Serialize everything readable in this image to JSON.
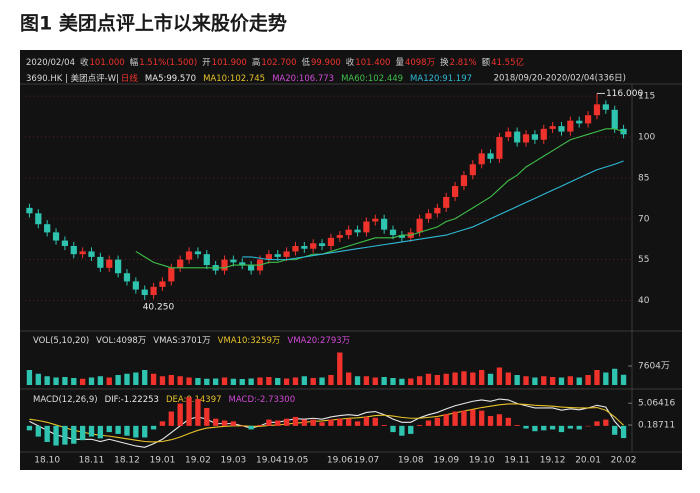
{
  "title": "图1  美团点评上市以来股价走势",
  "chart_data": [
    {
      "type": "candlestick",
      "header": [
        "2020/02/04",
        "收",
        "101.000",
        "幅",
        "1.51%(1.500)",
        "开",
        "101.900",
        "高",
        "102.700",
        "低",
        "99.900",
        "收",
        "101.400",
        "量",
        "4098万",
        "换",
        "2.81%",
        "额",
        "41.55亿"
      ],
      "symbol": "3690.HK | 美团点评-W|",
      "period": "日线",
      "range": "2018/09/20-2020/02/04(336日)",
      "open": [
        74,
        72,
        68,
        65,
        62,
        60,
        57,
        58,
        56,
        52,
        55,
        50,
        47,
        44,
        42,
        45,
        47,
        52,
        55,
        58,
        57,
        53,
        51,
        55,
        54,
        53,
        51,
        55,
        57,
        56,
        58,
        60,
        59,
        61,
        60,
        63,
        64,
        66,
        65,
        69,
        70,
        66,
        64,
        63,
        65,
        70,
        72,
        74,
        78,
        82,
        86,
        90,
        94,
        92,
        100,
        102,
        98,
        101,
        99,
        103,
        104,
        102,
        106,
        105,
        108,
        112,
        110,
        103
      ],
      "high": [
        75.5,
        73.5,
        69.5,
        66.5,
        63.5,
        61.5,
        59.5,
        59.5,
        57.5,
        56.5,
        56.5,
        51.5,
        48.5,
        45.5,
        46.5,
        48.5,
        53.5,
        56.5,
        59.5,
        59.5,
        58.5,
        54.5,
        56.5,
        56.5,
        55.5,
        54.5,
        56.5,
        58.5,
        58.5,
        59.5,
        61.5,
        61.5,
        62.5,
        62.5,
        64.5,
        65.5,
        67.5,
        67.5,
        70.5,
        71.5,
        71.5,
        67.5,
        65.5,
        66.5,
        71.5,
        73.5,
        75.5,
        79.5,
        83.5,
        87.5,
        91.5,
        95.5,
        95.5,
        101.5,
        103.5,
        103.5,
        102.5,
        102.5,
        104.5,
        105.5,
        105.5,
        107.5,
        107.5,
        109.5,
        116,
        113.5,
        111.5,
        104.5
      ],
      "low": [
        70.5,
        66.5,
        63.5,
        60.5,
        58.5,
        55.5,
        55.5,
        54.5,
        50.5,
        50.5,
        48.5,
        45.5,
        42.5,
        40.25,
        40.5,
        43.5,
        45.5,
        50.5,
        53.5,
        55.5,
        51.5,
        49.5,
        49.5,
        52.5,
        51.5,
        49.5,
        49.5,
        53.5,
        54.5,
        54.5,
        56.5,
        57.5,
        57.5,
        58.5,
        58.5,
        61.5,
        62.5,
        63.5,
        63.5,
        67.5,
        64.5,
        62.5,
        61.5,
        61.5,
        63.5,
        68.5,
        70.5,
        72.5,
        76.5,
        80.5,
        84.5,
        88.5,
        90.5,
        90.5,
        98.5,
        96.5,
        96.5,
        97.5,
        97.5,
        101.5,
        100.5,
        100.5,
        103.5,
        103.5,
        106.5,
        108.5,
        101.5,
        99.5
      ],
      "close": [
        72,
        68,
        65,
        62,
        60,
        57,
        58,
        56,
        52,
        55,
        50,
        47,
        44,
        42,
        45,
        47,
        52,
        55,
        58,
        57,
        53,
        51,
        55,
        54,
        53,
        51,
        55,
        57,
        56,
        58,
        60,
        59,
        61,
        60,
        63,
        64,
        66,
        65,
        69,
        70,
        66,
        64,
        63,
        65,
        70,
        72,
        74,
        78,
        82,
        86,
        90,
        94,
        92,
        100,
        102,
        98,
        101,
        99,
        103,
        104,
        102,
        106,
        105,
        108,
        112,
        110,
        103,
        101
      ],
      "up_color": "#f0322d",
      "down_color": "#2ec4b0",
      "series": [
        {
          "name": "MA5:99.570",
          "color": "#e8e8e8"
        },
        {
          "name": "MA10:102.745",
          "color": "#e6c229"
        },
        {
          "name": "MA20:106.773",
          "color": "#d04ad8"
        },
        {
          "name": "MA60:102.449",
          "color": "#3fbf4a",
          "values": [
            null,
            null,
            null,
            null,
            null,
            null,
            null,
            null,
            null,
            null,
            null,
            null,
            58,
            56,
            54,
            53,
            52,
            52,
            52,
            52,
            52,
            52,
            52,
            53,
            53,
            53,
            53,
            54,
            54,
            55,
            55,
            56,
            57,
            57,
            58,
            59,
            60,
            61,
            62,
            63,
            63,
            63,
            64,
            64,
            65,
            66,
            67,
            69,
            70,
            72,
            74,
            76,
            78,
            81,
            84,
            86,
            89,
            91,
            93,
            95,
            97,
            99,
            100,
            101,
            102,
            103,
            103,
            102
          ]
        },
        {
          "name": "MA120:91.197",
          "color": "#2fb9d6",
          "values": [
            null,
            null,
            null,
            null,
            null,
            null,
            null,
            null,
            null,
            null,
            null,
            null,
            null,
            null,
            null,
            null,
            null,
            null,
            null,
            null,
            null,
            null,
            null,
            null,
            56,
            56,
            55.5,
            55,
            55,
            55,
            55.5,
            56,
            56.5,
            57,
            57.5,
            58,
            58.5,
            59,
            59.5,
            60,
            60.5,
            61,
            61.5,
            62,
            62.5,
            63,
            63.5,
            64,
            65,
            66,
            67,
            68.5,
            70,
            71.5,
            73,
            74.5,
            76,
            77.5,
            79,
            80.5,
            82,
            83.5,
            85,
            86.5,
            88,
            89,
            90,
            91.2
          ]
        }
      ],
      "high_label": "116.000",
      "low_label": "40.250",
      "ylim": [
        31,
        118
      ],
      "yticks": [
        40,
        55,
        70,
        85,
        100,
        115
      ],
      "grid": true
    },
    {
      "type": "bar",
      "series": [
        {
          "name": "VOL(5,10,20)",
          "color": "#dddddd"
        },
        {
          "name": "VOL:4098万",
          "color": "#dddddd",
          "values": [
            6000,
            4500,
            3500,
            3000,
            3200,
            2800,
            2500,
            3000,
            3500,
            3000,
            4000,
            4500,
            5000,
            6000,
            4500,
            3500,
            4000,
            3500,
            3000,
            2800,
            2500,
            2600,
            3000,
            2500,
            2400,
            2600,
            3000,
            3200,
            2800,
            2600,
            3000,
            3500,
            2800,
            3000,
            4000,
            13000,
            5000,
            3500,
            3500,
            3000,
            3200,
            2800,
            2500,
            2600,
            3500,
            4500,
            4000,
            4500,
            5000,
            5500,
            5000,
            6000,
            4500,
            7000,
            5000,
            4000,
            3500,
            3000,
            3500,
            3200,
            3000,
            3500,
            3000,
            4000,
            6000,
            5000,
            6500,
            4098
          ]
        },
        {
          "name": "VMAS:3701万",
          "color": "#dddddd"
        },
        {
          "name": "VMA10:3259万",
          "color": "#e6c229"
        },
        {
          "name": "VMA20:2793万",
          "color": "#d04ad8"
        }
      ],
      "ylim": [
        0,
        16000
      ],
      "yticks": [
        {
          "value": 7604,
          "label": "7604万"
        }
      ]
    },
    {
      "type": "macd",
      "categories": [
        null,
        null,
        "18.10",
        null,
        null,
        null,
        null,
        "18.11",
        null,
        null,
        null,
        "18.12",
        null,
        null,
        null,
        "19.01",
        null,
        null,
        null,
        "19.02",
        null,
        null,
        null,
        "19.03",
        null,
        null,
        null,
        "19.04",
        null,
        null,
        "19.05",
        null,
        null,
        null,
        null,
        "19.06",
        null,
        null,
        "19.07",
        null,
        null,
        null,
        null,
        "19.08",
        null,
        null,
        null,
        "19.09",
        null,
        null,
        null,
        "19.10",
        null,
        null,
        null,
        "19.11",
        null,
        null,
        null,
        "19.12",
        null,
        null,
        null,
        "20.01",
        null,
        null,
        null,
        "20.02"
      ],
      "series": [
        {
          "name": "MACD(12,26,9)",
          "color": "#dddddd"
        },
        {
          "name": "DIF:-1.22253",
          "color": "#e8e8e8",
          "values": [
            1,
            0,
            -1,
            -2,
            -2.5,
            -3,
            -3,
            -3,
            -3.5,
            -3,
            -3.5,
            -4,
            -4.5,
            -4.8,
            -4,
            -3,
            -1.5,
            0,
            1.5,
            2,
            1.5,
            0.5,
            0.5,
            0.5,
            0,
            -0.5,
            0,
            0.8,
            0.8,
            1.2,
            1.6,
            1.5,
            1.7,
            1.5,
            2,
            2.3,
            2.5,
            2.3,
            3,
            3.2,
            2.5,
            1.5,
            0.8,
            0.8,
            1.8,
            2.5,
            3,
            3.8,
            4.5,
            5,
            5.5,
            5.8,
            5.5,
            6,
            5.8,
            5,
            4.5,
            4,
            4,
            4,
            3.5,
            3.8,
            3.6,
            4,
            4.6,
            4.2,
            1,
            -1.2
          ]
        },
        {
          "name": "DEA:0.14397",
          "color": "#e6c229",
          "values": [
            1.5,
            1.2,
            0.8,
            0.2,
            -0.4,
            -1,
            -1.4,
            -1.8,
            -2.1,
            -2.3,
            -2.6,
            -2.9,
            -3.2,
            -3.5,
            -3.6,
            -3.5,
            -3.1,
            -2.5,
            -1.7,
            -1,
            -0.5,
            -0.3,
            -0.1,
            0,
            0,
            -0.1,
            -0.1,
            0.1,
            0.2,
            0.4,
            0.6,
            0.8,
            1,
            1.1,
            1.3,
            1.5,
            1.7,
            1.8,
            2,
            2.3,
            2.4,
            2.2,
            1.9,
            1.7,
            1.7,
            1.9,
            2.1,
            2.5,
            2.9,
            3.3,
            3.7,
            4.1,
            4.4,
            4.7,
            4.9,
            4.9,
            4.8,
            4.6,
            4.5,
            4.4,
            4.2,
            4.1,
            4,
            4,
            4.1,
            3.5,
            2,
            0.14
          ]
        },
        {
          "name": "MACD:-2.73300",
          "color": "#d04ad8",
          "style": "histogram",
          "values": [
            -1,
            -2.4,
            -3.6,
            -4.4,
            -4.2,
            -4,
            -3.2,
            -2.4,
            -2.8,
            -1.4,
            -1.8,
            -2.2,
            -2.6,
            -2.6,
            -0.8,
            1,
            3.2,
            5,
            6.4,
            6,
            4,
            1.6,
            1.2,
            1,
            0,
            -0.8,
            0.2,
            1.4,
            1.2,
            1.6,
            2,
            1.4,
            1.4,
            0.8,
            1.4,
            1.6,
            1.6,
            1,
            2,
            1.8,
            0.2,
            -1.4,
            -2.2,
            -1.8,
            0.2,
            1.2,
            1.8,
            2.6,
            3.2,
            3.4,
            3.6,
            3.4,
            2.2,
            2.6,
            1.8,
            0.2,
            -0.6,
            -1.2,
            -1,
            -0.8,
            -1.4,
            -0.6,
            -0.8,
            0,
            1,
            1.4,
            -2,
            -2.733
          ]
        }
      ],
      "ylim": [
        -5.4,
        6.9
      ],
      "yticks": [
        5.06416,
        0.18711
      ]
    }
  ]
}
